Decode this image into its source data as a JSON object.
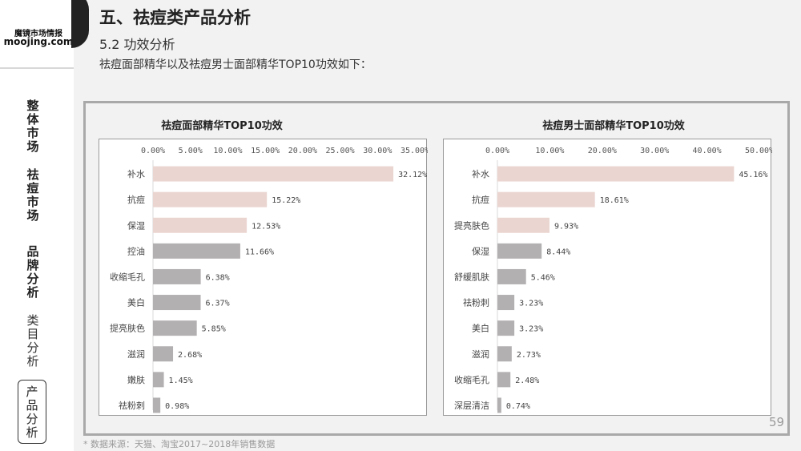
{
  "brand": {
    "name_cn": "魔镜市场情报",
    "name_en": "moojing.com"
  },
  "nav": [
    {
      "label": "整体市场",
      "state": "bold"
    },
    {
      "label": "祛痘市场",
      "state": "bold"
    },
    {
      "label": "品牌分析",
      "state": "bold"
    },
    {
      "label": "类目分析",
      "state": "muted"
    },
    {
      "label": "产品分析",
      "state": "active"
    }
  ],
  "header": {
    "title": "五、祛痘类产品分析",
    "subtitle": "5.2 功效分析",
    "description": "祛痘面部精华以及祛痘男士面部精华TOP10功效如下："
  },
  "colors": {
    "bar_pink": "#ead5d0",
    "bar_gray": "#b3b0b1",
    "accent_dark": "#222222"
  },
  "chart_data": [
    {
      "type": "bar",
      "orientation": "horizontal",
      "title": "祛痘面部精华TOP10功效",
      "categories": [
        "补水",
        "抗痘",
        "保湿",
        "控油",
        "收缩毛孔",
        "美白",
        "提亮肤色",
        "滋润",
        "嫩肤",
        "祛粉刺"
      ],
      "values": [
        32.12,
        15.22,
        12.53,
        11.66,
        6.38,
        6.37,
        5.85,
        2.68,
        1.45,
        0.98
      ],
      "value_labels": [
        "32.12%",
        "15.22%",
        "12.53%",
        "11.66%",
        "6.38%",
        "6.37%",
        "5.85%",
        "2.68%",
        "1.45%",
        "0.98%"
      ],
      "bar_colors": [
        "pink",
        "pink",
        "pink",
        "gray",
        "gray",
        "gray",
        "gray",
        "gray",
        "gray",
        "gray"
      ],
      "xlim": [
        0,
        35
      ],
      "ticks": [
        "0.00%",
        "5.00%",
        "10.00%",
        "15.00%",
        "20.00%",
        "25.00%",
        "30.00%",
        "35.00%"
      ],
      "axis_position": "top",
      "grid": false
    },
    {
      "type": "bar",
      "orientation": "horizontal",
      "title": "祛痘男士面部精华TOP10功效",
      "categories": [
        "补水",
        "抗痘",
        "提亮肤色",
        "保湿",
        "舒缓肌肤",
        "祛粉刺",
        "美白",
        "滋润",
        "收缩毛孔",
        "深层清洁"
      ],
      "values": [
        45.16,
        18.61,
        9.93,
        8.44,
        5.46,
        3.23,
        3.23,
        2.73,
        2.48,
        0.74
      ],
      "value_labels": [
        "45.16%",
        "18.61%",
        "9.93%",
        "8.44%",
        "5.46%",
        "3.23%",
        "3.23%",
        "2.73%",
        "2.48%",
        "0.74%"
      ],
      "bar_colors": [
        "pink",
        "pink",
        "pink",
        "gray",
        "gray",
        "gray",
        "gray",
        "gray",
        "gray",
        "gray"
      ],
      "xlim": [
        0,
        50
      ],
      "ticks": [
        "0.00%",
        "10.00%",
        "20.00%",
        "30.00%",
        "40.00%",
        "50.00%"
      ],
      "axis_position": "top",
      "grid": false
    }
  ],
  "footer": {
    "page_number": "59",
    "source": "* 数据来源：天猫、淘宝2017~2018年销售数据"
  }
}
